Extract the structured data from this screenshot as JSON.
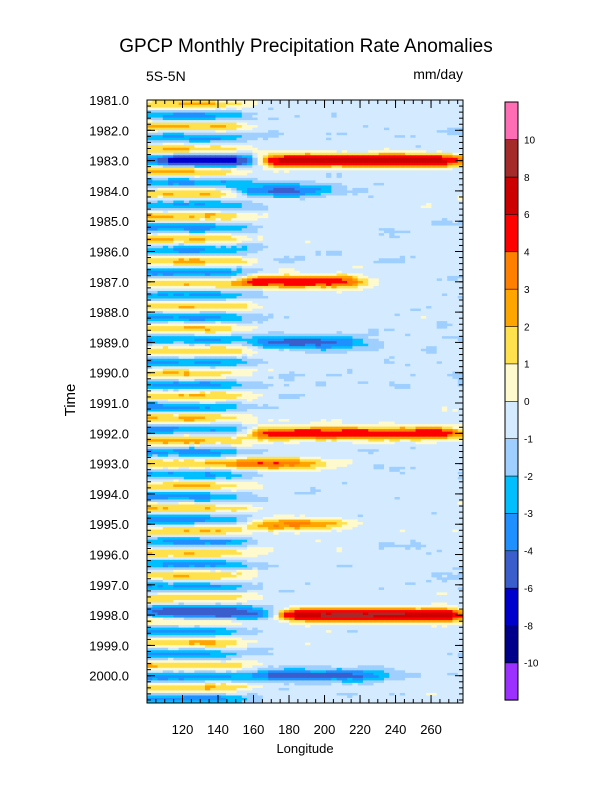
{
  "chart_data": {
    "type": "heatmap",
    "title": "GPCP Monthly Precipitation Rate Anomalies",
    "left_subtitle": "5S-5N",
    "right_subtitle": "mm/day",
    "xlabel": "Longitude",
    "ylabel": "Time",
    "xlim": [
      100,
      278
    ],
    "ylim": [
      1981.0,
      2000.9
    ],
    "x_ticks": [
      120,
      140,
      160,
      180,
      200,
      220,
      240,
      260
    ],
    "y_ticks": [
      1981.0,
      1982.0,
      1983.0,
      1984.0,
      1985.0,
      1986.0,
      1987.0,
      1988.0,
      1989.0,
      1990.0,
      1991.0,
      1992.0,
      1993.0,
      1994.0,
      1995.0,
      1996.0,
      1997.0,
      1998.0,
      1999.0,
      2000.0
    ],
    "y_tick_labels": [
      "1981.0",
      "1982.0",
      "1983.0",
      "1984.0",
      "1985.0",
      "1986.0",
      "1987.0",
      "1988.0",
      "1989.0",
      "1990.0",
      "1991.0",
      "1992.0",
      "1993.0",
      "1994.0",
      "1995.0",
      "1996.0",
      "1997.0",
      "1998.0",
      "1999.0",
      "2000.0"
    ],
    "y_reversed": true,
    "colorbar": {
      "boundaries": [
        "-10",
        "-8",
        "-6",
        "-4",
        "-3",
        "-2",
        "-1",
        "0",
        "1",
        "2",
        "3",
        "4",
        "6",
        "8",
        "10"
      ],
      "colors": [
        "#9b30ff",
        "#00008b",
        "#0000cd",
        "#3a5fcd",
        "#1e90ff",
        "#00bfff",
        "#9fcfff",
        "#d4ebff",
        "#fffacd",
        "#ffe14d",
        "#ffa500",
        "#ff7f00",
        "#ff0000",
        "#cc0000",
        "#a52a2a",
        "#ff6eb4"
      ]
    },
    "anomaly_features": [
      {
        "year": 1983.0,
        "lon_start": 165,
        "lon_end": 278,
        "value": 8
      },
      {
        "year": 1983.0,
        "lon_start": 110,
        "lon_end": 160,
        "value": -5
      },
      {
        "year": 1984.0,
        "lon_start": 150,
        "lon_end": 200,
        "value": -4
      },
      {
        "year": 1987.0,
        "lon_start": 155,
        "lon_end": 220,
        "value": 6
      },
      {
        "year": 1989.0,
        "lon_start": 160,
        "lon_end": 220,
        "value": -4
      },
      {
        "year": 1992.0,
        "lon_start": 160,
        "lon_end": 278,
        "value": 6
      },
      {
        "year": 1993.0,
        "lon_start": 150,
        "lon_end": 200,
        "value": 4
      },
      {
        "year": 1995.0,
        "lon_start": 160,
        "lon_end": 210,
        "value": 4
      },
      {
        "year": 1998.0,
        "lon_start": 175,
        "lon_end": 278,
        "value": 9
      },
      {
        "year": 1998.0,
        "lon_start": 100,
        "lon_end": 175,
        "value": -4
      },
      {
        "year": 2000.0,
        "lon_start": 160,
        "lon_end": 230,
        "value": -4
      }
    ]
  }
}
